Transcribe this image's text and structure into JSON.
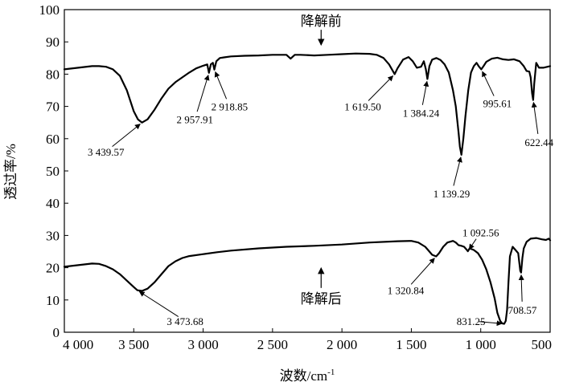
{
  "chart_data": {
    "type": "line",
    "title": "",
    "xlabel": "波数/cm",
    "xlabel_sup": "-1",
    "ylabel": "透过率/%",
    "xlim": [
      4000,
      500
    ],
    "ylim": [
      0,
      100
    ],
    "x_ticks": [
      4000,
      3500,
      3000,
      2500,
      2000,
      1500,
      1000,
      500
    ],
    "x_tick_labels": [
      "4 000",
      "3 500",
      "3 000",
      "2 500",
      "2 000",
      "1 500",
      "1 000",
      "500"
    ],
    "y_ticks": [
      0,
      10,
      20,
      30,
      40,
      50,
      60,
      70,
      80,
      90,
      100
    ],
    "y_tick_labels": [
      "0",
      "10",
      "20",
      "30",
      "40",
      "50",
      "60",
      "70",
      "80",
      "90",
      "100"
    ],
    "series": [
      {
        "name": "降解前",
        "label_at": [
          2150,
          95
        ],
        "x": [
          4000,
          3900,
          3800,
          3750,
          3700,
          3650,
          3600,
          3550,
          3500,
          3470,
          3440,
          3400,
          3350,
          3300,
          3250,
          3200,
          3150,
          3100,
          3050,
          3000,
          2970,
          2958,
          2945,
          2930,
          2919,
          2905,
          2880,
          2850,
          2800,
          2700,
          2600,
          2500,
          2400,
          2370,
          2340,
          2300,
          2200,
          2100,
          2000,
          1900,
          1800,
          1750,
          1700,
          1660,
          1640,
          1620,
          1600,
          1560,
          1520,
          1490,
          1460,
          1430,
          1410,
          1395,
          1384,
          1370,
          1350,
          1320,
          1290,
          1260,
          1230,
          1200,
          1180,
          1160,
          1150,
          1139,
          1125,
          1110,
          1090,
          1070,
          1050,
          1030,
          1015,
          996,
          980,
          960,
          920,
          880,
          840,
          800,
          760,
          720,
          690,
          670,
          650,
          640,
          630,
          622,
          615,
          600,
          580,
          550,
          500
        ],
        "y": [
          81.5,
          82,
          82.5,
          82.5,
          82.3,
          81.5,
          79.5,
          75,
          68.5,
          66,
          65,
          66,
          69,
          72.5,
          75.5,
          77.5,
          79,
          80.5,
          81.8,
          82.6,
          83,
          80.4,
          83,
          83.5,
          81.4,
          84,
          85,
          85.2,
          85.5,
          85.7,
          85.8,
          86,
          86,
          84.8,
          86,
          86,
          85.8,
          86,
          86.2,
          86.4,
          86.3,
          86,
          85,
          83,
          81.5,
          80,
          81.8,
          84.5,
          85.3,
          84,
          82,
          82.3,
          84,
          81.5,
          78.5,
          82.5,
          84.5,
          85,
          84.4,
          83,
          80.5,
          75,
          70,
          62,
          57.5,
          55,
          60,
          67,
          75,
          80.5,
          82.5,
          83.5,
          82.5,
          81.5,
          82.5,
          83.8,
          84.8,
          85.1,
          84.6,
          84.4,
          84.6,
          84,
          82.5,
          81,
          80.8,
          79,
          74,
          72,
          77,
          83.5,
          82,
          82,
          82.5
        ]
      },
      {
        "name": "降解后",
        "label_at": [
          2150,
          9
        ],
        "x": [
          4000,
          3900,
          3800,
          3750,
          3700,
          3650,
          3600,
          3550,
          3500,
          3474,
          3440,
          3400,
          3350,
          3300,
          3250,
          3200,
          3150,
          3100,
          3000,
          2900,
          2800,
          2600,
          2400,
          2200,
          2000,
          1800,
          1600,
          1500,
          1450,
          1400,
          1370,
          1350,
          1321,
          1300,
          1270,
          1240,
          1200,
          1180,
          1160,
          1140,
          1120,
          1100,
          1093,
          1080,
          1050,
          1020,
          990,
          960,
          930,
          900,
          880,
          860,
          845,
          831,
          820,
          810,
          800,
          790,
          770,
          750,
          730,
          715,
          709,
          700,
          690,
          670,
          640,
          600,
          560,
          530,
          510,
          500
        ],
        "y": [
          20.3,
          20.8,
          21.3,
          21.2,
          20.5,
          19.5,
          18,
          16,
          14,
          13,
          12.8,
          13.5,
          15.5,
          18,
          20.5,
          22,
          23,
          23.6,
          24.2,
          24.8,
          25.3,
          26,
          26.5,
          26.8,
          27.2,
          27.8,
          28.2,
          28.3,
          27.8,
          26.5,
          25,
          24,
          23.5,
          24.5,
          26.5,
          27.8,
          28.3,
          27.8,
          27,
          26.8,
          26.5,
          25.5,
          25.1,
          26,
          25.5,
          24.5,
          22.5,
          19.5,
          15.5,
          10.5,
          6,
          3.5,
          2.7,
          2.6,
          3.5,
          7,
          15.5,
          23.5,
          26.5,
          25.5,
          24.5,
          19,
          18.5,
          23,
          26,
          28,
          29,
          29.2,
          28.8,
          28.6,
          29,
          28.5
        ]
      }
    ],
    "annotations": [
      {
        "text": "3 439.57",
        "x": 3440,
        "y": 65,
        "text_x": 3700,
        "text_y": 56
      },
      {
        "text": "2 957.91",
        "x": 2958,
        "y": 80.4,
        "text_x": 3060,
        "text_y": 66
      },
      {
        "text": "2 918.85",
        "x": 2919,
        "y": 81.4,
        "text_x": 2810,
        "text_y": 70
      },
      {
        "text": "1 619.50",
        "x": 1620,
        "y": 80,
        "text_x": 1850,
        "text_y": 70
      },
      {
        "text": "1 384.24",
        "x": 1384,
        "y": 78.5,
        "text_x": 1430,
        "text_y": 68
      },
      {
        "text": "995.61",
        "x": 996,
        "y": 81.5,
        "text_x": 880,
        "text_y": 71
      },
      {
        "text": "622.44",
        "x": 622,
        "y": 72,
        "text_x": 580,
        "text_y": 59
      },
      {
        "text": "1 139.29",
        "x": 1139,
        "y": 55,
        "text_x": 1210,
        "text_y": 43
      },
      {
        "text": "1 092.56",
        "x": 1093,
        "y": 25.1,
        "text_x": 1000,
        "text_y": 31
      },
      {
        "text": "1 320.84",
        "x": 1321,
        "y": 23.5,
        "text_x": 1540,
        "text_y": 13
      },
      {
        "text": "3 473.68",
        "x": 3474,
        "y": 13,
        "text_x": 3130,
        "text_y": 3.5
      },
      {
        "text": "831.25",
        "x": 831,
        "y": 2.6,
        "text_x": 1070,
        "text_y": 3.5
      },
      {
        "text": "708.57",
        "x": 709,
        "y": 18.5,
        "text_x": 700,
        "text_y": 7
      }
    ],
    "grid": false,
    "legend": "none"
  }
}
